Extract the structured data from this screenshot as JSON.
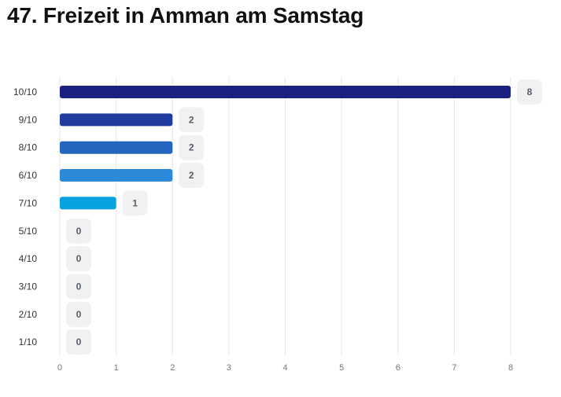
{
  "chart_data": {
    "type": "bar",
    "orientation": "horizontal",
    "title": "47. Freizeit in Amman am Samstag",
    "categories": [
      "10/10",
      "9/10",
      "8/10",
      "6/10",
      "7/10",
      "5/10",
      "4/10",
      "3/10",
      "2/10",
      "1/10"
    ],
    "values": [
      8,
      2,
      2,
      2,
      1,
      0,
      0,
      0,
      0,
      0
    ],
    "bar_colors": [
      "#1c2180",
      "#1f3c9e",
      "#2266bf",
      "#2b8ad9",
      "#08a1e2",
      "#08a1e2",
      "#08a1e2",
      "#08a1e2",
      "#08a1e2",
      "#08a1e2"
    ],
    "xticks": [
      "0",
      "1",
      "2",
      "3",
      "4",
      "5",
      "6",
      "7",
      "8"
    ],
    "xlim": [
      0,
      8
    ],
    "xlabel": "",
    "ylabel": "",
    "grid": true,
    "value_labels": true,
    "legend": "none"
  }
}
